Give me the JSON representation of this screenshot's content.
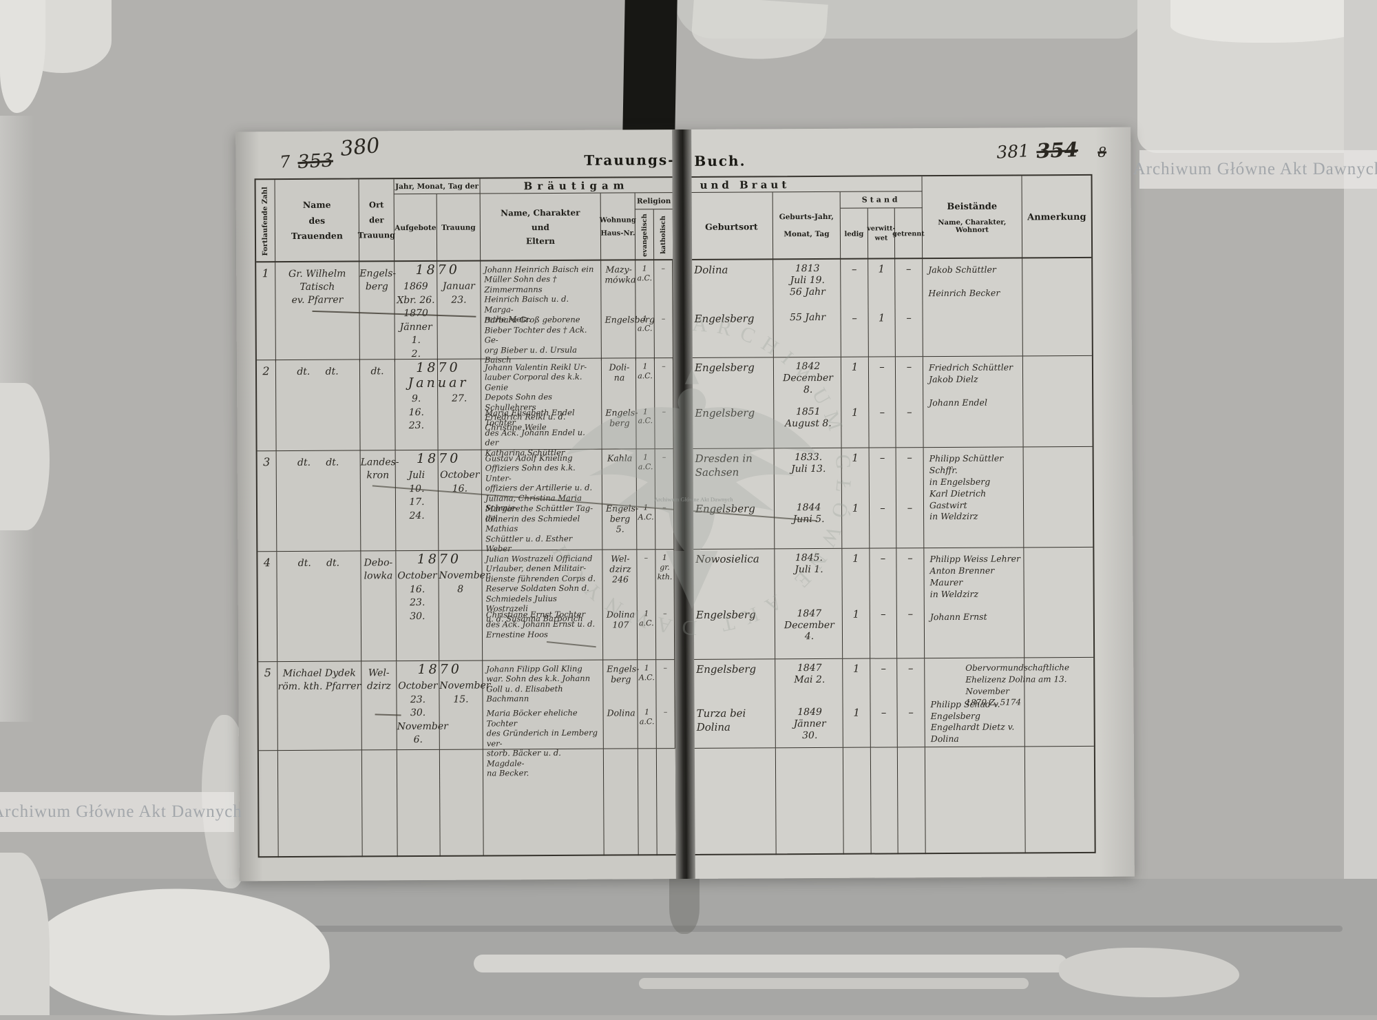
{
  "watermark": {
    "text": "Archiwum Główne Akt Dawnych"
  },
  "stamp": {
    "arc_text": "ARCHIWUM GŁÓWNE AKT DAWNYCH",
    "small_text": "Archiwum Główne Akt Dawnych"
  },
  "left": {
    "page_number_old": "7",
    "page_number_crossed": "353",
    "page_number": "380",
    "title": "Trauungs-",
    "header": {
      "fortlaufende": "Fortlaufende Zahl",
      "name": "Name\ndes\nTrauenden",
      "ort": "Ort\nder\nTrauung",
      "datum": "Jahr, Monat, Tag der",
      "aufgebote": "Aufgebote",
      "trauung": "Trauung",
      "braeutigam": "Bräutigam",
      "name_charakter": "Name, Charakter\nund\nEltern",
      "wohnung": "Wohnung\nHaus-Nr.",
      "religion": "Religion",
      "evangelisch": "evangelisch",
      "katholisch": "katholisch"
    }
  },
  "right": {
    "page_number": "381",
    "page_number_crossed": "354",
    "page_number_extra": "8",
    "title": "Buch.",
    "header": {
      "und_braut": "und Braut",
      "geburtsort": "Geburtsort",
      "geburtsjahr": "Geburts-Jahr,\nMonat, Tag",
      "stand": "Stand",
      "ledig": "ledig",
      "verwittwet": "verwitt-\nwet",
      "getrennt": "getrennt",
      "beistaende_title": "Beistände",
      "beistaende_sub": "Name, Charakter, Wohnort",
      "anmerkung": "Anmerkung"
    }
  },
  "rows": [
    {
      "nr": "1",
      "trauender": "Gr. Wilhelm\nTatisch\nev. Pfarrer",
      "ort": "Engels-\nberg",
      "jahr": "1870",
      "aufgebote": "1869\nXbr. 26.\n1870\nJänner 1.\n2.",
      "trauung": "Januar\n23.",
      "groom": {
        "name": "Johann Heinrich Baisch ein\nMüller Sohn des † Zimmermanns\nHeinrich Baisch u. d. Marga-\nrethe Metz.",
        "wohnung": "Mazy-\nmówka",
        "rel_ev": "1\na.C.",
        "rel_kath": "–",
        "geburtsort": "Dolina",
        "geboren": "1813\nJuli 19.\n56 Jahr",
        "ledig": "–",
        "verwittwet": "1",
        "getrennt": "–"
      },
      "bride": {
        "name": "Barbara Groß geborene\nBieber Tochter des † Ack. Ge-\norg Bieber u. d. Ursula Baisch",
        "wohnung": "Engelsberg",
        "rel_ev": "1\na.C.",
        "rel_kath": "–",
        "geburtsort": "Engelsberg",
        "geboren": "55 Jahr",
        "ledig": "–",
        "verwittwet": "1",
        "getrennt": "–"
      },
      "beistaende": "Jakob Schüttler\n\nHeinrich Becker",
      "anmerkung": ""
    },
    {
      "nr": "2",
      "trauender": "dt.     dt.",
      "ort": "dt.",
      "jahr": "1870\nJanuar",
      "aufgebote": "9.\n16.\n23.",
      "trauung": "27.",
      "groom": {
        "name": "Johann Valentin Reikl Ur-\nlauber Corporal des k.k. Genie\nDepots Sohn des Schullehrers\nFriedrich Reikl u. d. Christine Weile",
        "wohnung": "Doli-\nna",
        "rel_ev": "1\na.C.",
        "rel_kath": "–",
        "geburtsort": "Engelsberg",
        "geboren": "1842\nDecember\n8.",
        "ledig": "1",
        "verwittwet": "–",
        "getrennt": "–"
      },
      "bride": {
        "name": "Maria Elisabeth Endel Tochter\ndes Ack. Johann Endel u. der\nKatharina Schüttler",
        "wohnung": "Engels-\nberg",
        "rel_ev": "1\na.C.",
        "rel_kath": "–",
        "geburtsort": "Engelsberg",
        "geboren": "1851\nAugust 8.",
        "ledig": "1",
        "verwittwet": "–",
        "getrennt": "–"
      },
      "beistaende": "Friedrich Schüttler\nJakob Dielz\n\nJohann Endel",
      "anmerkung": ""
    },
    {
      "nr": "3",
      "trauender": "dt.     dt.",
      "ort": "Landes-\nkron",
      "jahr": "1870",
      "aufgebote": "Juli\n10.\n17.\n24.",
      "trauung": "October\n16.",
      "groom": {
        "name": "Gustav Adolf Knieling\nOffiziers Sohn des k.k. Unter-\noffiziers der Artillerie u. d.\nJuliana, Christina Maria Schmie-\ndel.",
        "wohnung": "Kahla",
        "rel_ev": "1\na.C.",
        "rel_kath": "–",
        "geburtsort": "Dresden in\nSachsen",
        "geboren": "1833.\nJuli 13.",
        "ledig": "1",
        "verwittwet": "–",
        "getrennt": "–"
      },
      "bride": {
        "name": "Margarethe Schüttler Tag-\nlöhnerin des Schmiedel Mathias\nSchüttler u. d. Esther Weber",
        "wohnung": "Engels-\nberg\n5.",
        "rel_ev": "1\nA.C.",
        "rel_kath": "–",
        "geburtsort": "Engelsberg",
        "geboren": "1844\nJuni 5.",
        "ledig": "1",
        "verwittwet": "–",
        "getrennt": "–"
      },
      "beistaende": "Philipp Schüttler Schffr.\nin Engelsberg\nKarl Dietrich Gastwirt\nin Weldzirz",
      "anmerkung": ""
    },
    {
      "nr": "4",
      "trauender": "dt.     dt.",
      "ort": "Debo-\nlowka",
      "jahr": "1870",
      "aufgebote": "October\n16.\n23.\n30.",
      "trauung": "November\n8",
      "groom": {
        "name": "Julian Wostrazeli Officiand\nUrlauber, denen Militair-\ndienste führenden Corps d.\nReserve Soldaten Sohn d.\nSchmiedels Julius Wostrazeli\nu. d. Susanna Barborich",
        "wohnung": "Wel-\ndzirz\n246",
        "rel_ev": "–",
        "rel_kath": "1\ngr.\nkth.",
        "geburtsort": "Nowosielica",
        "geboren": "1845.\nJuli 1.",
        "ledig": "1",
        "verwittwet": "–",
        "getrennt": "–"
      },
      "bride": {
        "name": "Christiane Ernst Tochter\ndes Ack. Johann Ernst u. d.\nErnestine Hoos",
        "wohnung": "Dolina\n107",
        "rel_ev": "1\na.C.",
        "rel_kath": "–",
        "geburtsort": "Engelsberg",
        "geboren": "1847\nDecember\n4.",
        "ledig": "1",
        "verwittwet": "–",
        "getrennt": "–"
      },
      "beistaende": "Philipp Weiss Lehrer\nAnton Brenner Maurer\nin Weldzirz\n\nJohann Ernst",
      "anmerkung": ""
    },
    {
      "nr": "5",
      "trauender": "Michael Dydek\nröm. kth. Pfarrer",
      "ort": "Wel-\ndzirz",
      "jahr": "1870",
      "aufgebote": "October\n23.\n30.\nNovember\n6.",
      "trauung": "November\n15.",
      "groom": {
        "name": "Johann Filipp Goll Kling\nwar. Sohn des k.k. Johann\nGoll u. d. Elisabeth Bachmann",
        "wohnung": "Engels-\nberg",
        "rel_ev": "1\nA.C.",
        "rel_kath": "–",
        "geburtsort": "Engelsberg",
        "geboren": "1847\nMai 2.",
        "ledig": "1",
        "verwittwet": "–",
        "getrennt": "–"
      },
      "bride": {
        "name": "Maria Böcker eheliche Tochter\ndes Gründerich in Lemberg ver-\nstorb. Bäcker u. d. Magdale-\nna Becker.",
        "wohnung": "Dolina",
        "rel_ev": "1\na.C.",
        "rel_kath": "–",
        "geburtsort": "Turza bei Dolina",
        "geboren": "1849\nJänner\n30.",
        "ledig": "1",
        "verwittwet": "–",
        "getrennt": "–"
      },
      "beistaende": "\n\n\nPhilipp Schad v.\nEngelsberg\nEngelhardt Dietz v. Dolina",
      "anmerkung": "Obervormundschaftliche\nEhelizenz Dolina am 13. November\n1870 Z. 5174"
    }
  ]
}
